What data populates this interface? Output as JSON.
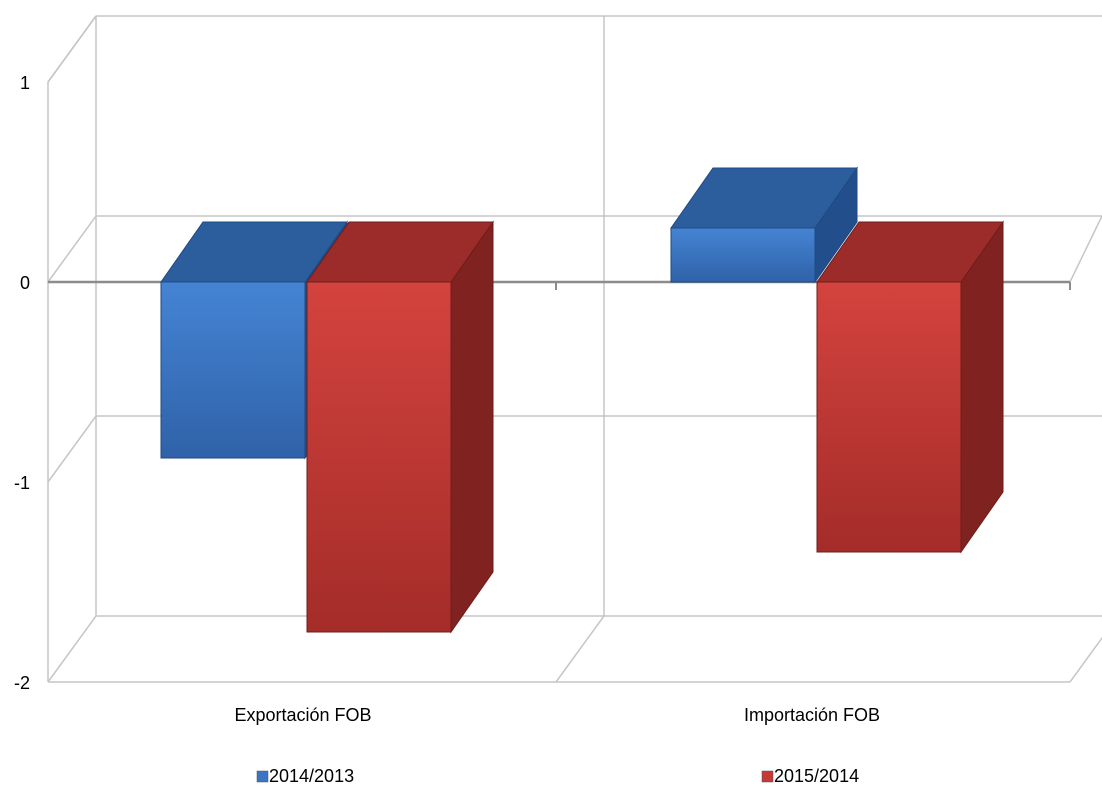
{
  "chart_data": {
    "type": "bar",
    "style": "3d-clustered-column",
    "categories": [
      "Exportación FOB",
      "Importación FOB"
    ],
    "series": [
      {
        "name": "2014/2013",
        "values": [
          -0.88,
          0.27
        ],
        "color": "#3a74c4"
      },
      {
        "name": "2015/2014",
        "values": [
          -1.75,
          -1.35
        ],
        "color": "#c63a36"
      }
    ],
    "ylim": [
      -2,
      1
    ],
    "yticks": [
      "1",
      "0",
      "-1",
      "-2"
    ],
    "grid": true,
    "legend": "bottom"
  }
}
